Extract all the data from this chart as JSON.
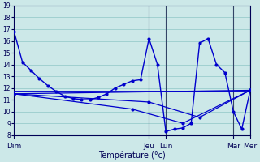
{
  "xlabel": "Température (°c)",
  "bg_color": "#cce8e8",
  "grid_color": "#99cccc",
  "line_color": "#0000cc",
  "vline_color": "#334466",
  "ylim": [
    8,
    19
  ],
  "yticks": [
    8,
    9,
    10,
    11,
    12,
    13,
    14,
    15,
    16,
    17,
    18,
    19
  ],
  "xlim": [
    0,
    168
  ],
  "day_labels": [
    "Dim",
    "Jeu",
    "Lun",
    "Mar",
    "Mer"
  ],
  "day_positions": [
    0,
    96,
    108,
    156,
    168
  ],
  "hline_y": 11.7,
  "series_main": {
    "x": [
      0,
      6,
      12,
      18,
      24,
      30,
      36,
      42,
      48,
      54,
      60,
      66,
      72,
      78,
      84,
      90,
      96,
      102,
      108,
      114,
      120,
      126,
      132,
      138,
      144,
      150,
      156,
      162,
      168
    ],
    "y": [
      16.8,
      14.2,
      13.5,
      12.8,
      12.2,
      11.7,
      11.3,
      11.1,
      11.0,
      11.0,
      11.2,
      11.5,
      12.0,
      12.3,
      12.6,
      12.7,
      16.2,
      14.0,
      8.3,
      8.5,
      8.6,
      9.0,
      15.8,
      16.2,
      14.0,
      13.3,
      10.0,
      8.5,
      11.8
    ]
  },
  "series_diag1": {
    "x": [
      0,
      168
    ],
    "y": [
      11.5,
      11.8
    ]
  },
  "series_diag2": {
    "x": [
      0,
      84,
      120,
      168
    ],
    "y": [
      11.5,
      10.2,
      9.0,
      11.8
    ]
  },
  "series_diag3": {
    "x": [
      0,
      96,
      132,
      168
    ],
    "y": [
      11.5,
      10.8,
      9.5,
      11.8
    ]
  }
}
